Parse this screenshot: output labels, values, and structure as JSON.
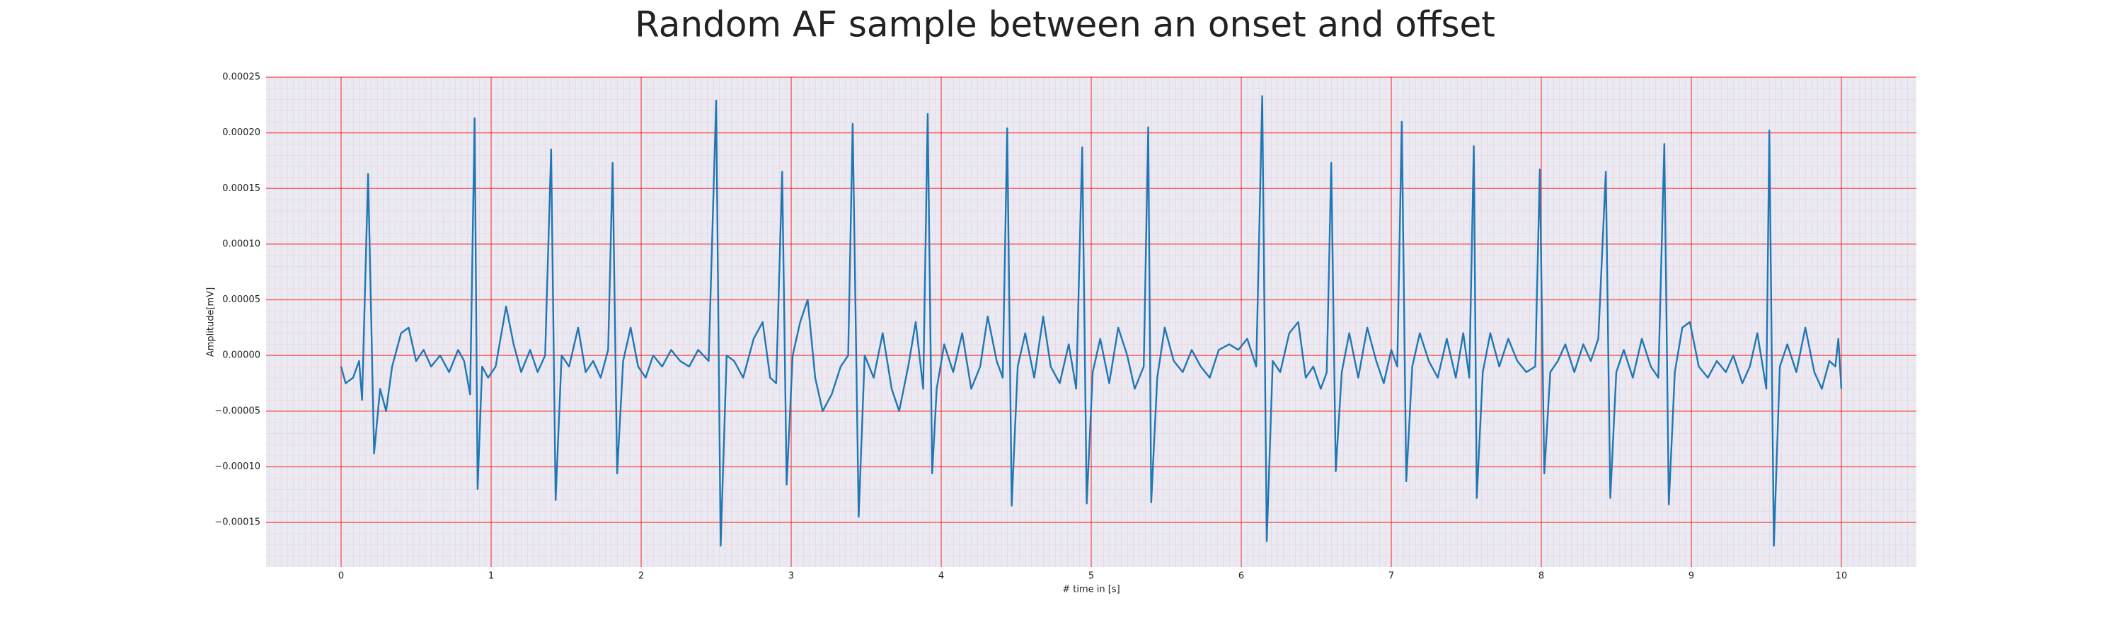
{
  "chart_data": {
    "type": "line",
    "title": "Random AF sample between an onset and offset",
    "x_label": "# time in [s]",
    "y_label": "Amplitude[mV]",
    "color": "#1f77b4",
    "grid": true,
    "xlim": [
      -0.5,
      10.5
    ],
    "xticks": [
      0,
      1,
      2,
      3,
      4,
      5,
      6,
      7,
      8,
      9,
      10
    ],
    "ylim": [
      -0.00019,
      0.00025
    ],
    "yticks": [
      {
        "value": -0.00015,
        "label": "−0.00015"
      },
      {
        "value": -0.0001,
        "label": "−0.00010"
      },
      {
        "value": -5e-05,
        "label": "−0.00005"
      },
      {
        "value": 0,
        "label": "0.00000"
      },
      {
        "value": 5e-05,
        "label": "0.00005"
      },
      {
        "value": 0.0001,
        "label": "0.00010"
      },
      {
        "value": 0.00015,
        "label": "0.00015"
      },
      {
        "value": 0.0002,
        "label": "0.00020"
      },
      {
        "value": 0.00025,
        "label": "0.00025"
      }
    ],
    "x": [
      0.0,
      0.03,
      0.08,
      0.12,
      0.14,
      0.18,
      0.22,
      0.26,
      0.3,
      0.34,
      0.4,
      0.45,
      0.5,
      0.55,
      0.6,
      0.66,
      0.72,
      0.78,
      0.82,
      0.86,
      0.89,
      0.91,
      0.94,
      0.98,
      1.03,
      1.1,
      1.15,
      1.2,
      1.26,
      1.31,
      1.36,
      1.4,
      1.43,
      1.47,
      1.52,
      1.58,
      1.63,
      1.68,
      1.73,
      1.78,
      1.81,
      1.84,
      1.88,
      1.93,
      1.98,
      2.03,
      2.08,
      2.14,
      2.2,
      2.26,
      2.32,
      2.38,
      2.45,
      2.5,
      2.53,
      2.57,
      2.62,
      2.68,
      2.75,
      2.81,
      2.86,
      2.9,
      2.94,
      2.97,
      3.01,
      3.06,
      3.11,
      3.16,
      3.21,
      3.27,
      3.33,
      3.38,
      3.41,
      3.45,
      3.49,
      3.55,
      3.61,
      3.67,
      3.72,
      3.78,
      3.83,
      3.88,
      3.91,
      3.94,
      3.97,
      4.02,
      4.08,
      4.14,
      4.2,
      4.26,
      4.31,
      4.37,
      4.41,
      4.44,
      4.47,
      4.51,
      4.56,
      4.62,
      4.68,
      4.73,
      4.79,
      4.85,
      4.9,
      4.94,
      4.97,
      5.01,
      5.06,
      5.12,
      5.18,
      5.24,
      5.29,
      5.35,
      5.38,
      5.4,
      5.44,
      5.49,
      5.55,
      5.61,
      5.67,
      5.73,
      5.79,
      5.85,
      5.92,
      5.98,
      6.04,
      6.1,
      6.14,
      6.17,
      6.21,
      6.26,
      6.32,
      6.38,
      6.43,
      6.48,
      6.53,
      6.57,
      6.6,
      6.63,
      6.67,
      6.72,
      6.78,
      6.84,
      6.9,
      6.95,
      7.0,
      7.04,
      7.07,
      7.1,
      7.14,
      7.19,
      7.25,
      7.31,
      7.37,
      7.43,
      7.48,
      7.52,
      7.55,
      7.57,
      7.61,
      7.66,
      7.72,
      7.78,
      7.84,
      7.9,
      7.96,
      7.99,
      8.02,
      8.06,
      8.11,
      8.16,
      8.22,
      8.28,
      8.33,
      8.38,
      8.43,
      8.46,
      8.5,
      8.55,
      8.61,
      8.67,
      8.73,
      8.78,
      8.82,
      8.85,
      8.89,
      8.94,
      8.99,
      9.05,
      9.11,
      9.17,
      9.23,
      9.28,
      9.34,
      9.39,
      9.44,
      9.5,
      9.52,
      9.55,
      9.59,
      9.64,
      9.7,
      9.76,
      9.82,
      9.87,
      9.92,
      9.96,
      9.98,
      10.0
    ],
    "values": [
      -1e-05,
      -2.5e-05,
      -2e-05,
      -5e-06,
      -4e-05,
      0.000163,
      -8.8e-05,
      -3e-05,
      -5e-05,
      -1e-05,
      2e-05,
      2.5e-05,
      -5e-06,
      5e-06,
      -1e-05,
      0,
      -1.5e-05,
      5e-06,
      -5e-06,
      -3.5e-05,
      0.000213,
      -0.00012,
      -1e-05,
      -2e-05,
      -1e-05,
      4.4e-05,
      1e-05,
      -1.5e-05,
      5e-06,
      -1.5e-05,
      0,
      0.000185,
      -0.00013,
      0,
      -1e-05,
      2.5e-05,
      -1.5e-05,
      -5e-06,
      -2e-05,
      5e-06,
      0.000173,
      -0.000106,
      -5e-06,
      2.5e-05,
      -1e-05,
      -2e-05,
      0,
      -1e-05,
      5e-06,
      -5e-06,
      -1e-05,
      5e-06,
      -5e-06,
      0.000229,
      -0.000171,
      0,
      -5e-06,
      -2e-05,
      1.5e-05,
      3e-05,
      -2e-05,
      -2.5e-05,
      0.000165,
      -0.000116,
      0,
      3e-05,
      5e-05,
      -2e-05,
      -5e-05,
      -3.5e-05,
      -1e-05,
      0,
      0.000208,
      -0.000145,
      0,
      -2e-05,
      2e-05,
      -3e-05,
      -5e-05,
      -1e-05,
      3e-05,
      -3e-05,
      0.000217,
      -0.000106,
      -3e-05,
      1e-05,
      -1.5e-05,
      2e-05,
      -3e-05,
      -1e-05,
      3.5e-05,
      -5e-06,
      -2e-05,
      0.000204,
      -0.000135,
      -1e-05,
      2e-05,
      -2e-05,
      3.5e-05,
      -1e-05,
      -2.5e-05,
      1e-05,
      -3e-05,
      0.000187,
      -0.000133,
      -1.5e-05,
      1.5e-05,
      -2.5e-05,
      2.5e-05,
      0,
      -3e-05,
      -1e-05,
      0.000205,
      -0.000132,
      -2e-05,
      2.5e-05,
      -5e-06,
      -1.5e-05,
      5e-06,
      -1e-05,
      -2e-05,
      5e-06,
      1e-05,
      5e-06,
      1.5e-05,
      -1e-05,
      0.000233,
      -0.000167,
      -5e-06,
      -1.5e-05,
      2e-05,
      3e-05,
      -2e-05,
      -1e-05,
      -3e-05,
      -1.5e-05,
      0.000173,
      -0.000104,
      -1.5e-05,
      2e-05,
      -2e-05,
      2.5e-05,
      -5e-06,
      -2.5e-05,
      5e-06,
      -1e-05,
      0.00021,
      -0.000113,
      -1e-05,
      2e-05,
      -5e-06,
      -2e-05,
      1.5e-05,
      -2e-05,
      2e-05,
      -2e-05,
      0.000188,
      -0.000128,
      -1.5e-05,
      2e-05,
      -1e-05,
      1.5e-05,
      -5e-06,
      -1.5e-05,
      -1e-05,
      0.000167,
      -0.000106,
      -1.5e-05,
      -5e-06,
      1e-05,
      -1.5e-05,
      1e-05,
      -5e-06,
      1.5e-05,
      0.000165,
      -0.000128,
      -1.5e-05,
      5e-06,
      -2e-05,
      1.5e-05,
      -1e-05,
      -2e-05,
      0.00019,
      -0.000134,
      -1.5e-05,
      2.5e-05,
      3e-05,
      -1e-05,
      -2e-05,
      -5e-06,
      -1.5e-05,
      0,
      -2.5e-05,
      -1e-05,
      2e-05,
      -3e-05,
      0.000202,
      -0.000171,
      -1e-05,
      1e-05,
      -1.5e-05,
      2.5e-05,
      -1.5e-05,
      -3e-05,
      -5e-06,
      -1e-05,
      1.5e-05,
      -3e-05
    ]
  }
}
